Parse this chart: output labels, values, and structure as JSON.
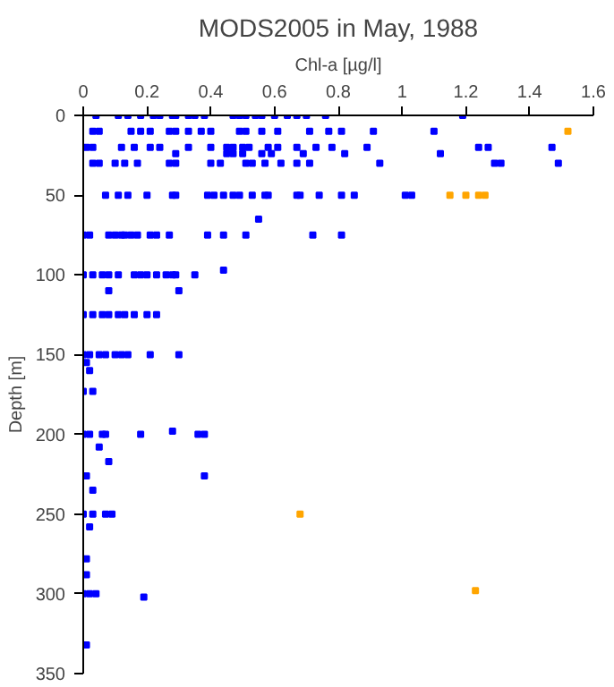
{
  "chart_data": {
    "type": "scatter",
    "title": "MODS2005 in May, 1988",
    "xlabel": "Chl-a [µg/l]",
    "ylabel": "Depth [m]",
    "xlim": [
      0,
      1.6
    ],
    "xticks": [
      0,
      0.2,
      0.4,
      0.6,
      0.8,
      1,
      1.2,
      1.4,
      1.6
    ],
    "ylim": [
      350,
      0
    ],
    "yticks": [
      0,
      50,
      100,
      150,
      200,
      250,
      300,
      350
    ],
    "marker": "square",
    "series": [
      {
        "color": "#0000ff",
        "x": [
          0.04,
          0.11,
          0.14,
          0.18,
          0.22,
          0.24,
          0.28,
          0.29,
          0.33,
          0.35,
          0.38,
          0.47,
          0.49,
          0.51,
          0.54,
          0.56,
          0.6,
          0.64,
          0.67,
          0.7,
          0.76,
          1.19,
          0.03,
          0.05,
          0.15,
          0.18,
          0.21,
          0.27,
          0.29,
          0.33,
          0.37,
          0.4,
          0.49,
          0.51,
          0.56,
          0.61,
          0.71,
          0.77,
          0.81,
          0.91,
          1.1,
          0.01,
          0.03,
          0.12,
          0.16,
          0.21,
          0.24,
          0.33,
          0.4,
          0.45,
          0.47,
          0.5,
          0.52,
          0.58,
          0.61,
          0.67,
          0.73,
          0.78,
          0.89,
          1.24,
          1.27,
          1.47,
          0.29,
          0.45,
          0.47,
          0.5,
          0.56,
          0.59,
          0.69,
          0.82,
          1.12,
          0.03,
          0.05,
          0.1,
          0.13,
          0.17,
          0.27,
          0.29,
          0.4,
          0.43,
          0.51,
          0.53,
          0.57,
          0.62,
          0.67,
          0.71,
          0.93,
          1.29,
          1.31,
          1.49,
          0.07,
          0.11,
          0.14,
          0.2,
          0.28,
          0.29,
          0.39,
          0.41,
          0.44,
          0.47,
          0.49,
          0.53,
          0.57,
          0.58,
          0.67,
          0.68,
          0.74,
          0.81,
          0.85,
          1.01,
          1.03,
          0.55,
          0.0,
          0.02,
          0.08,
          0.1,
          0.12,
          0.13,
          0.15,
          0.17,
          0.21,
          0.23,
          0.27,
          0.39,
          0.44,
          0.51,
          0.72,
          0.81,
          0.44,
          0.0,
          0.03,
          0.06,
          0.08,
          0.11,
          0.16,
          0.18,
          0.2,
          0.23,
          0.26,
          0.28,
          0.29,
          0.35,
          0.08,
          0.3,
          0.0,
          0.03,
          0.06,
          0.08,
          0.11,
          0.13,
          0.16,
          0.2,
          0.23,
          0.0,
          0.02,
          0.05,
          0.07,
          0.1,
          0.12,
          0.14,
          0.21,
          0.3,
          0.01,
          0.02,
          0.0,
          0.03,
          0.28,
          0.0,
          0.02,
          0.06,
          0.07,
          0.18,
          0.36,
          0.38,
          0.05,
          0.08,
          0.01,
          0.38,
          0.03,
          0.0,
          0.03,
          0.07,
          0.09,
          0.02,
          0.01,
          0.01,
          0.0,
          0.02,
          0.04,
          0.19,
          0.01
        ],
        "values": [
          0,
          0,
          0,
          0,
          0,
          0,
          0,
          0,
          0,
          0,
          0,
          0,
          0,
          0,
          0,
          0,
          0,
          0,
          0,
          0,
          0,
          0,
          10,
          10,
          10,
          10,
          10,
          10,
          10,
          10,
          10,
          10,
          10,
          10,
          10,
          10,
          10,
          10,
          10,
          10,
          10,
          20,
          20,
          20,
          20,
          20,
          20,
          20,
          20,
          20,
          20,
          20,
          20,
          20,
          20,
          20,
          20,
          20,
          20,
          20,
          20,
          20,
          24,
          24,
          24,
          24,
          24,
          24,
          24,
          24,
          24,
          30,
          30,
          30,
          30,
          30,
          30,
          30,
          30,
          30,
          30,
          30,
          30,
          30,
          30,
          30,
          30,
          30,
          30,
          30,
          50,
          50,
          50,
          50,
          50,
          50,
          50,
          50,
          50,
          50,
          50,
          50,
          50,
          50,
          50,
          50,
          50,
          50,
          50,
          50,
          50,
          65,
          75,
          75,
          75,
          75,
          75,
          75,
          75,
          75,
          75,
          75,
          75,
          75,
          75,
          75,
          75,
          75,
          97,
          100,
          100,
          100,
          100,
          100,
          100,
          100,
          100,
          100,
          100,
          100,
          100,
          100,
          110,
          110,
          125,
          125,
          125,
          125,
          125,
          125,
          125,
          125,
          125,
          150,
          150,
          150,
          150,
          150,
          150,
          150,
          150,
          150,
          155,
          160,
          173,
          173,
          198,
          200,
          200,
          200,
          200,
          200,
          200,
          200,
          208,
          217,
          226,
          226,
          235,
          250,
          250,
          250,
          250,
          258,
          278,
          288,
          300,
          300,
          300,
          302,
          332
        ]
      },
      {
        "color": "#ffa500",
        "x": [
          1.52,
          1.15,
          1.2,
          1.24,
          1.26,
          0.68,
          1.23
        ],
        "values": [
          10,
          50,
          50,
          50,
          50,
          250,
          298
        ]
      }
    ]
  }
}
